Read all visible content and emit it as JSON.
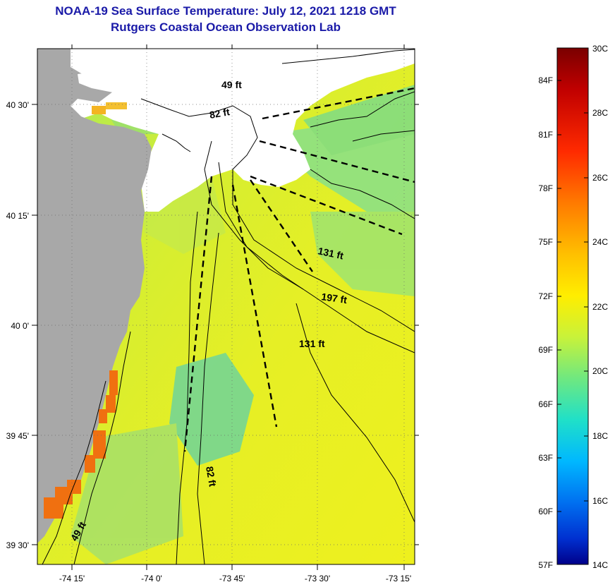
{
  "title": {
    "line1": "NOAA-19 Sea Surface Temperature:  July 12, 2021 1218 GMT",
    "line2": "Rutgers Coastal Ocean Observation Lab"
  },
  "map": {
    "lat_labels": [
      "40 30'",
      "40 15'",
      "40 0'",
      "39 45'",
      "39 30'"
    ],
    "lon_labels": [
      "-74 15'",
      "-74 0'",
      "-73 45'",
      "-73 30'",
      "-73 15'"
    ],
    "depth_labels": [
      "49 ft",
      "82 ft",
      "131 ft",
      "197 ft",
      "131 ft",
      "82 ft",
      "49 ft"
    ]
  },
  "colorbar": {
    "fahrenheit": [
      "84F",
      "81F",
      "78F",
      "75F",
      "72F",
      "69F",
      "66F",
      "63F",
      "60F",
      "57F"
    ],
    "celsius": [
      "30C",
      "28C",
      "26C",
      "24C",
      "22C",
      "20C",
      "18C",
      "16C",
      "14C"
    ],
    "colors": [
      "#7a0000",
      "#c00000",
      "#ff2a00",
      "#ff7a00",
      "#ffc000",
      "#ffee00",
      "#c8f23a",
      "#6fe880",
      "#20e0c8",
      "#00b8ff",
      "#0070f0",
      "#0030d0",
      "#00008a"
    ]
  },
  "palette": {
    "land": "#a8a8a8",
    "cloud": "#ffffff",
    "title": "#1a1aa8"
  }
}
